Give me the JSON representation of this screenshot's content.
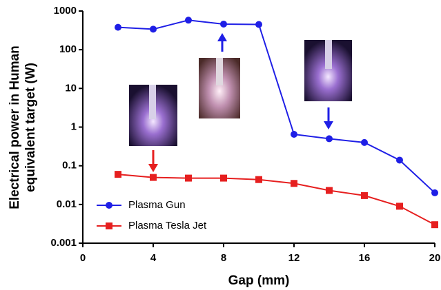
{
  "chart_data": {
    "type": "line",
    "ylabel": [
      "Electrical power in Human",
      "equivalent target (W)"
    ],
    "xlabel": "Gap (mm)",
    "x": [
      2,
      4,
      6,
      8,
      10,
      12,
      14,
      16,
      18,
      20
    ],
    "series": [
      {
        "name": "Plasma Gun",
        "color": "#1f1fe6",
        "marker": "circle",
        "values": [
          380,
          340,
          580,
          460,
          450,
          0.65,
          0.5,
          0.4,
          0.14,
          0.02
        ]
      },
      {
        "name": "Plasma Tesla Jet",
        "color": "#e61f1f",
        "marker": "square",
        "values": [
          0.06,
          0.05,
          0.048,
          0.048,
          0.044,
          0.035,
          0.023,
          0.017,
          0.009,
          0.003
        ]
      }
    ],
    "xlim": [
      0,
      20
    ],
    "xticks": [
      0,
      4,
      8,
      12,
      16,
      20
    ],
    "ylim": [
      0.001,
      1000
    ],
    "yticks": [
      0.001,
      0.01,
      0.1,
      1,
      10,
      100,
      1000
    ],
    "yscale": "log",
    "legend": "lower left"
  }
}
